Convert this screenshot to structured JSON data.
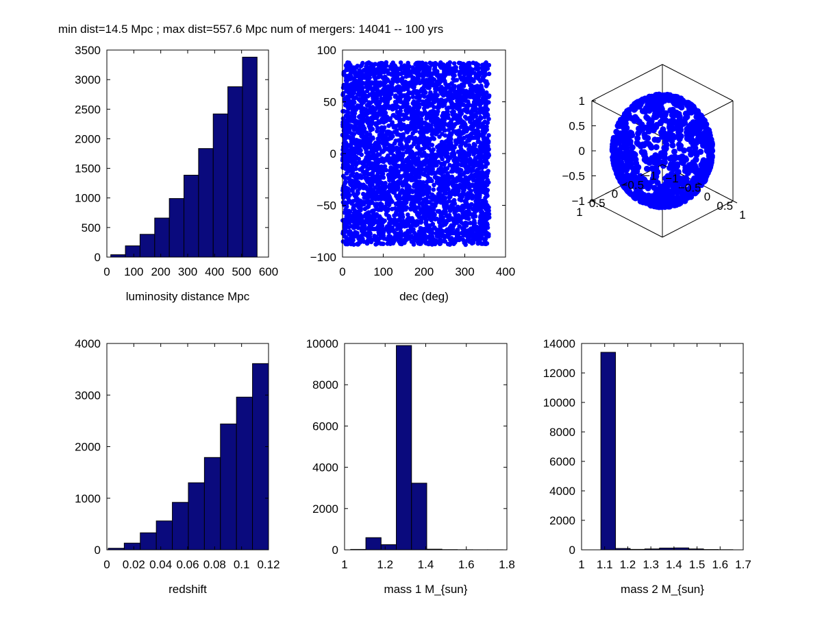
{
  "figure": {
    "suptitle": "min dist=14.5 Mpc ; max dist=557.6 Mpc num of mergers: 14041 -- 100 yrs",
    "colors": {
      "bar_fill": "#0a0a7d",
      "bar_edge": "#000000",
      "marker": "#0000ff",
      "axes": "#000000"
    }
  },
  "chart_data": [
    {
      "id": "lumdist",
      "type": "bar",
      "title": "",
      "xlabel": "luminosity distance Mpc",
      "ylabel": "",
      "xlim": [
        0,
        600
      ],
      "ylim": [
        0,
        3500
      ],
      "xticks": [
        0,
        100,
        200,
        300,
        400,
        500,
        600
      ],
      "xticklabels": [
        "0",
        "100",
        "200",
        "300",
        "400",
        "500",
        "600"
      ],
      "yticks": [
        0,
        500,
        1000,
        1500,
        2000,
        2500,
        3000,
        3500
      ],
      "yticklabels": [
        "0",
        "500",
        "1000",
        "1500",
        "2000",
        "2500",
        "3000",
        "3500"
      ],
      "bins": [
        {
          "x0": 14.5,
          "x1": 68.8,
          "value": 40
        },
        {
          "x0": 68.8,
          "x1": 123.1,
          "value": 190
        },
        {
          "x0": 123.1,
          "x1": 177.5,
          "value": 385
        },
        {
          "x0": 177.5,
          "x1": 231.8,
          "value": 660
        },
        {
          "x0": 231.8,
          "x1": 286.1,
          "value": 990
        },
        {
          "x0": 286.1,
          "x1": 340.4,
          "value": 1385
        },
        {
          "x0": 340.4,
          "x1": 394.7,
          "value": 1835
        },
        {
          "x0": 394.7,
          "x1": 449.0,
          "value": 2420
        },
        {
          "x0": 449.0,
          "x1": 503.3,
          "value": 2880
        },
        {
          "x0": 503.3,
          "x1": 557.6,
          "value": 3380
        }
      ]
    },
    {
      "id": "skymap",
      "type": "scatter",
      "title": "",
      "xlabel": "dec (deg)",
      "ylabel": "",
      "xlim": [
        0,
        400
      ],
      "ylim": [
        -100,
        100
      ],
      "xticks": [
        0,
        100,
        200,
        300,
        400
      ],
      "xticklabels": [
        "0",
        "100",
        "200",
        "300",
        "400"
      ],
      "yticks": [
        -100,
        -50,
        0,
        50,
        100
      ],
      "yticklabels": [
        "-100",
        "-50",
        "0",
        "50",
        "100"
      ],
      "points_range": {
        "x": [
          0,
          360
        ],
        "y": [
          -88,
          88
        ]
      }
    },
    {
      "id": "sphere3d",
      "type": "scatter",
      "title": "",
      "xlabel": "",
      "ylabel": "",
      "xlim": [
        -1,
        1
      ],
      "ylim": [
        -1,
        1
      ],
      "zlim": [
        -1,
        1
      ],
      "xticklabels": [
        "-1",
        "-0.5",
        "0",
        "0.5",
        "1"
      ],
      "yticklabels": [
        "-1",
        "-0.5",
        "0",
        "0.5",
        "1"
      ],
      "zticklabels": [
        "-1",
        "-0.5",
        "0",
        "0.5",
        "1"
      ],
      "points_range": {
        "radius": 1
      }
    },
    {
      "id": "redshift",
      "type": "bar",
      "title": "",
      "xlabel": "redshift",
      "ylabel": "",
      "xlim": [
        0,
        0.12
      ],
      "ylim": [
        0,
        4000
      ],
      "xticks": [
        0,
        0.02,
        0.04,
        0.06,
        0.08,
        0.1,
        0.12
      ],
      "xticklabels": [
        "0",
        "0.02",
        "0.04",
        "0.06",
        "0.08",
        "0.1",
        "0.12"
      ],
      "yticks": [
        0,
        1000,
        2000,
        3000,
        4000
      ],
      "yticklabels": [
        "0",
        "1000",
        "2000",
        "3000",
        "4000"
      ],
      "bins": [
        {
          "x0": 0.001,
          "x1": 0.0129,
          "value": 30
        },
        {
          "x0": 0.0129,
          "x1": 0.0248,
          "value": 130
        },
        {
          "x0": 0.0248,
          "x1": 0.0367,
          "value": 330
        },
        {
          "x0": 0.0367,
          "x1": 0.0486,
          "value": 560
        },
        {
          "x0": 0.0486,
          "x1": 0.0605,
          "value": 920
        },
        {
          "x0": 0.0605,
          "x1": 0.0724,
          "value": 1300
        },
        {
          "x0": 0.0724,
          "x1": 0.0843,
          "value": 1790
        },
        {
          "x0": 0.0843,
          "x1": 0.0962,
          "value": 2440
        },
        {
          "x0": 0.0962,
          "x1": 0.1081,
          "value": 2960
        },
        {
          "x0": 0.1081,
          "x1": 0.12,
          "value": 3610
        }
      ]
    },
    {
      "id": "mass1",
      "type": "bar",
      "title": "",
      "xlabel": "mass 1 M_{sun}",
      "ylabel": "",
      "xlim": [
        1,
        1.8
      ],
      "ylim": [
        0,
        10000
      ],
      "xticks": [
        1,
        1.2,
        1.4,
        1.6,
        1.8
      ],
      "xticklabels": [
        "1",
        "1.2",
        "1.4",
        "1.6",
        "1.8"
      ],
      "yticks": [
        0,
        2000,
        4000,
        6000,
        8000,
        10000
      ],
      "yticklabels": [
        "0",
        "2000",
        "4000",
        "6000",
        "8000",
        "10000"
      ],
      "bins": [
        {
          "x0": 1.03,
          "x1": 1.105,
          "value": 20
        },
        {
          "x0": 1.105,
          "x1": 1.18,
          "value": 590
        },
        {
          "x0": 1.18,
          "x1": 1.255,
          "value": 250
        },
        {
          "x0": 1.255,
          "x1": 1.33,
          "value": 9900
        },
        {
          "x0": 1.33,
          "x1": 1.405,
          "value": 3230
        },
        {
          "x0": 1.405,
          "x1": 1.48,
          "value": 30
        },
        {
          "x0": 1.48,
          "x1": 1.555,
          "value": 10
        },
        {
          "x0": 1.555,
          "x1": 1.63,
          "value": 5
        },
        {
          "x0": 1.63,
          "x1": 1.705,
          "value": 3
        },
        {
          "x0": 1.705,
          "x1": 1.78,
          "value": 3
        }
      ]
    },
    {
      "id": "mass2",
      "type": "bar",
      "title": "",
      "xlabel": "mass 2 M_{sun}",
      "ylabel": "",
      "xlim": [
        1,
        1.7
      ],
      "ylim": [
        0,
        14000
      ],
      "xticks": [
        1,
        1.1,
        1.2,
        1.3,
        1.4,
        1.5,
        1.6,
        1.7
      ],
      "xticklabels": [
        "1",
        "1.1",
        "1.2",
        "1.3",
        "1.4",
        "1.5",
        "1.6",
        "1.7"
      ],
      "yticks": [
        0,
        2000,
        4000,
        6000,
        8000,
        10000,
        12000,
        14000
      ],
      "yticklabels": [
        "0",
        "2000",
        "4000",
        "6000",
        "8000",
        "10000",
        "12000",
        "14000"
      ],
      "bins": [
        {
          "x0": 1.02,
          "x1": 1.0835,
          "value": 0
        },
        {
          "x0": 1.0835,
          "x1": 1.147,
          "value": 13400
        },
        {
          "x0": 1.147,
          "x1": 1.2105,
          "value": 90
        },
        {
          "x0": 1.2105,
          "x1": 1.274,
          "value": 30
        },
        {
          "x0": 1.274,
          "x1": 1.3375,
          "value": 60
        },
        {
          "x0": 1.3375,
          "x1": 1.401,
          "value": 120
        },
        {
          "x0": 1.401,
          "x1": 1.4645,
          "value": 130
        },
        {
          "x0": 1.4645,
          "x1": 1.528,
          "value": 60
        },
        {
          "x0": 1.528,
          "x1": 1.5915,
          "value": 20
        },
        {
          "x0": 1.5915,
          "x1": 1.655,
          "value": 10
        }
      ]
    }
  ]
}
